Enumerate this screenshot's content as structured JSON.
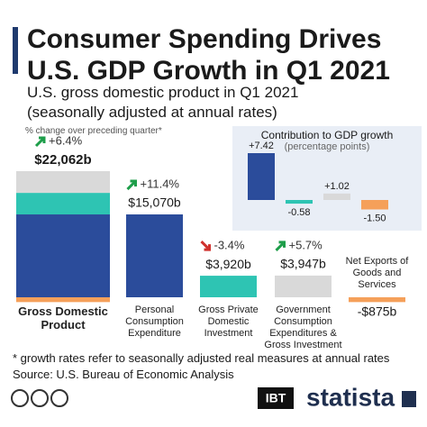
{
  "header": {
    "title": "Consumer Spending Drives U.S. GDP Growth in Q1 2021",
    "subtitle": "U.S. gross domestic product in Q1 2021 (seasonally adjusted at annual rates)"
  },
  "chart_data": [
    {
      "type": "bar",
      "note": "% change over preceding quarter*",
      "categories": [
        "Gross Domestic Product",
        "Personal Consumption Expenditure",
        "Gross Private Domestic Investment",
        "Government Consumption Expenditures & Gross Investment",
        "Net Exports of Goods and Services"
      ],
      "values": [
        22062,
        15070,
        3920,
        3947,
        -875
      ],
      "value_labels": [
        "$22,062b",
        "$15,070b",
        "$3,920b",
        "$3,947b",
        "-$875b"
      ],
      "growth": [
        6.4,
        11.4,
        -3.4,
        5.7,
        null
      ],
      "growth_labels": [
        "+6.4%",
        "+11.4%",
        "-3.4%",
        "+5.7%",
        null
      ],
      "colors": [
        "#2b4c9b",
        "#2b4c9b",
        "#2ec4b3",
        "#d9d9d9",
        "#f5a05a"
      ]
    },
    {
      "type": "bar",
      "title": "Contribution to GDP growth",
      "subtitle": "(percentage points)",
      "values": [
        7.42,
        -0.58,
        1.02,
        -1.5
      ],
      "value_labels": [
        "+7.42",
        "-0.58",
        "+1.02",
        "-1.50"
      ],
      "colors": [
        "#2b4c9b",
        "#2ec4b3",
        "#d9d9d9",
        "#f5a05a"
      ]
    }
  ],
  "footnote": "* growth rates refer to seasonally adjusted real measures at annual rates",
  "source": "Source: U.S. Bureau of Economic Analysis",
  "logos": [
    "IBT",
    "statista"
  ]
}
